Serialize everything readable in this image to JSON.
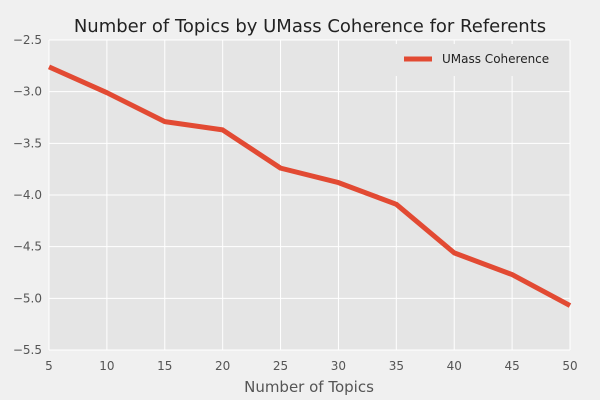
{
  "chart_data": {
    "type": "line",
    "title": "Number of Topics by UMass Coherence for Referents",
    "xlabel": "Number of Topics",
    "ylabel": "",
    "xlim": [
      5,
      50
    ],
    "ylim": [
      -5.5,
      -2.5
    ],
    "xticks": [
      5,
      10,
      15,
      20,
      25,
      30,
      35,
      40,
      45,
      50
    ],
    "yticks": [
      -2.5,
      -3.0,
      -3.5,
      -4.0,
      -4.5,
      -5.0,
      -5.5
    ],
    "ytick_labels": [
      "−2.5",
      "−3.0",
      "−3.5",
      "−4.0",
      "−4.5",
      "−5.0",
      "−5.5"
    ],
    "grid": true,
    "legend_position": "top-right",
    "series": [
      {
        "name": "UMass Coherence",
        "color": "#e24a33",
        "x": [
          5,
          10,
          15,
          20,
          25,
          30,
          35,
          40,
          45,
          50
        ],
        "y": [
          -2.76,
          -3.01,
          -3.29,
          -3.37,
          -3.74,
          -3.88,
          -4.09,
          -4.56,
          -4.77,
          -5.07
        ]
      }
    ]
  }
}
